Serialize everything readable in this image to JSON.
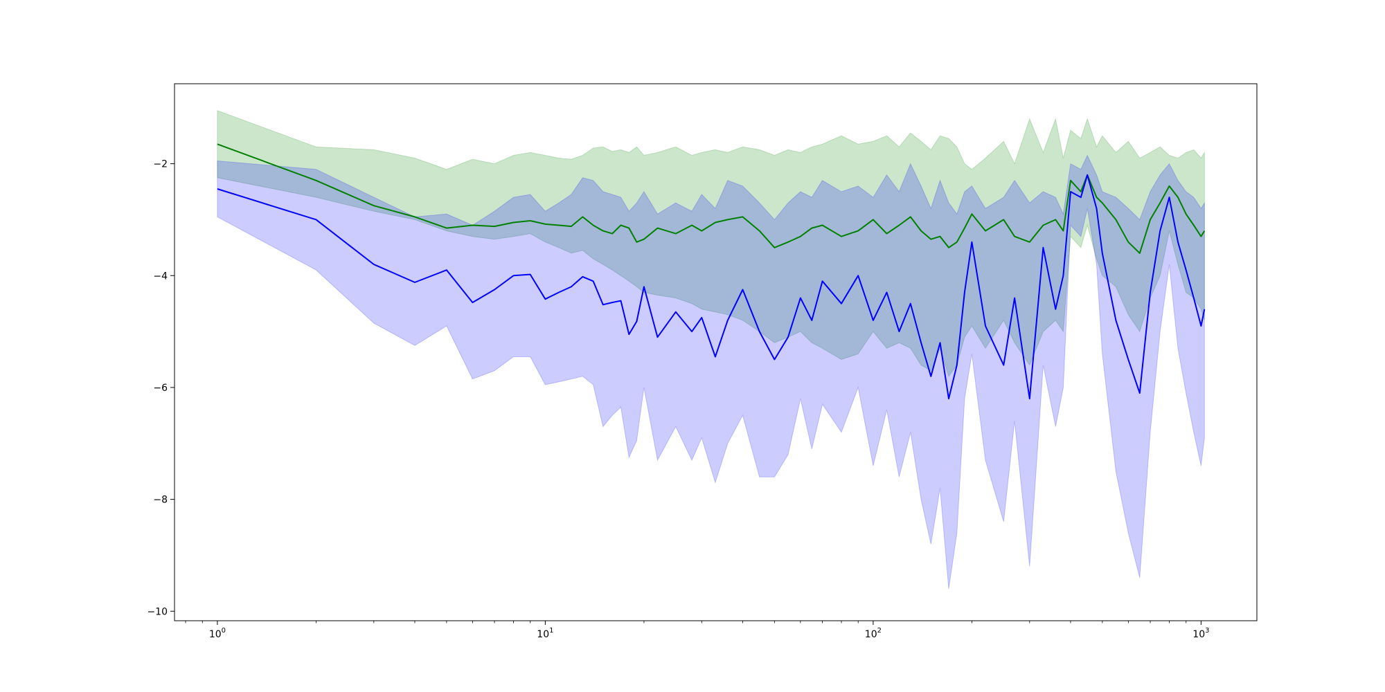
{
  "chart_data": {
    "type": "line",
    "title": "",
    "xlabel": "",
    "ylabel": "",
    "x_scale": "log",
    "xlim": [
      0.74,
      1480
    ],
    "ylim": [
      -10.17,
      -0.57
    ],
    "grid": false,
    "legend": "none",
    "y_ticks": [
      -10,
      -8,
      -6,
      -4,
      -2
    ],
    "y_tick_labels": [
      "−10",
      "−8",
      "−6",
      "−4",
      "−2"
    ],
    "x_ticks": [
      1,
      10,
      100,
      1000
    ],
    "x_tick_labels": [
      {
        "base": "10",
        "exp": "0"
      },
      {
        "base": "10",
        "exp": "1"
      },
      {
        "base": "10",
        "exp": "2"
      },
      {
        "base": "10",
        "exp": "3"
      }
    ],
    "series": [
      {
        "color": "#008000",
        "band_color": "#008000",
        "band_opacity": 0.2,
        "x": [
          1,
          2,
          3,
          4,
          5,
          6,
          7,
          8,
          9,
          10,
          11,
          12,
          13,
          14,
          15,
          16,
          17,
          18,
          19,
          20,
          22,
          25,
          28,
          30,
          33,
          36,
          40,
          45,
          50,
          55,
          60,
          65,
          70,
          80,
          90,
          100,
          110,
          120,
          130,
          140,
          150,
          160,
          170,
          180,
          190,
          200,
          220,
          250,
          270,
          300,
          330,
          360,
          380,
          400,
          430,
          450,
          480,
          500,
          550,
          600,
          650,
          700,
          750,
          800,
          850,
          900,
          950,
          1000,
          1024
        ],
        "y": [
          -1.65,
          -2.3,
          -2.75,
          -2.95,
          -3.15,
          -3.1,
          -3.12,
          -3.05,
          -3.02,
          -3.08,
          -3.1,
          -3.12,
          -2.95,
          -3.1,
          -3.2,
          -3.25,
          -3.1,
          -3.15,
          -3.4,
          -3.35,
          -3.15,
          -3.25,
          -3.1,
          -3.2,
          -3.05,
          -3.0,
          -2.95,
          -3.2,
          -3.5,
          -3.4,
          -3.3,
          -3.15,
          -3.1,
          -3.3,
          -3.2,
          -3.0,
          -3.25,
          -3.1,
          -2.95,
          -3.2,
          -3.35,
          -3.3,
          -3.5,
          -3.4,
          -3.15,
          -2.9,
          -3.2,
          -3.0,
          -3.3,
          -3.4,
          -3.1,
          -3.0,
          -3.2,
          -2.3,
          -2.5,
          -2.2,
          -2.6,
          -2.7,
          -3.0,
          -3.4,
          -3.6,
          -3.0,
          -2.7,
          -2.4,
          -2.6,
          -2.9,
          -3.1,
          -3.3,
          -3.2
        ],
        "band_upper": [
          -1.05,
          -1.7,
          -1.75,
          -1.9,
          -2.1,
          -1.92,
          -2.0,
          -1.85,
          -1.8,
          -1.85,
          -1.9,
          -1.92,
          -1.85,
          -1.72,
          -1.7,
          -1.78,
          -1.75,
          -1.8,
          -1.7,
          -1.85,
          -1.8,
          -1.7,
          -1.85,
          -1.8,
          -1.75,
          -1.8,
          -1.7,
          -1.75,
          -1.85,
          -1.75,
          -1.8,
          -1.7,
          -1.65,
          -1.5,
          -1.65,
          -1.6,
          -1.5,
          -1.7,
          -1.45,
          -1.6,
          -1.75,
          -1.5,
          -1.55,
          -1.7,
          -2.0,
          -2.1,
          -1.9,
          -1.6,
          -2.0,
          -1.2,
          -1.8,
          -1.2,
          -1.9,
          -1.4,
          -1.55,
          -1.2,
          -1.7,
          -1.5,
          -1.8,
          -1.6,
          -1.9,
          -1.8,
          -1.7,
          -1.85,
          -1.9,
          -1.8,
          -1.75,
          -1.9,
          -1.8
        ],
        "band_lower": [
          -2.25,
          -2.6,
          -2.85,
          -3.0,
          -3.2,
          -3.3,
          -3.35,
          -3.3,
          -3.25,
          -3.4,
          -3.5,
          -3.6,
          -3.55,
          -3.7,
          -3.8,
          -3.9,
          -4.0,
          -4.1,
          -4.2,
          -4.3,
          -4.35,
          -4.4,
          -4.5,
          -4.6,
          -4.65,
          -4.7,
          -4.8,
          -5.0,
          -5.2,
          -5.1,
          -5.0,
          -5.2,
          -5.3,
          -5.5,
          -5.4,
          -5.0,
          -5.3,
          -5.2,
          -5.3,
          -5.6,
          -5.7,
          -5.3,
          -5.8,
          -5.6,
          -5.1,
          -4.9,
          -5.3,
          -4.8,
          -5.2,
          -5.6,
          -5.0,
          -4.8,
          -5.0,
          -3.3,
          -3.5,
          -3.1,
          -3.7,
          -4.0,
          -4.2,
          -4.7,
          -5.0,
          -4.4,
          -4.0,
          -3.2,
          -3.8,
          -4.3,
          -4.4,
          -4.6,
          -4.8
        ]
      },
      {
        "color": "#0000ff",
        "band_color": "#0000ff",
        "band_opacity": 0.2,
        "x": [
          1,
          2,
          3,
          4,
          5,
          6,
          7,
          8,
          9,
          10,
          11,
          12,
          13,
          14,
          15,
          16,
          17,
          18,
          19,
          20,
          22,
          25,
          28,
          30,
          33,
          36,
          40,
          45,
          50,
          55,
          60,
          65,
          70,
          80,
          90,
          100,
          110,
          120,
          130,
          140,
          150,
          160,
          170,
          180,
          190,
          200,
          220,
          250,
          270,
          300,
          330,
          360,
          380,
          400,
          430,
          450,
          480,
          500,
          550,
          600,
          650,
          700,
          750,
          800,
          850,
          900,
          950,
          1000,
          1024
        ],
        "y": [
          -2.45,
          -3.0,
          -3.8,
          -4.12,
          -3.9,
          -4.48,
          -4.25,
          -4.0,
          -3.98,
          -4.42,
          -4.3,
          -4.2,
          -4.02,
          -4.1,
          -4.52,
          -4.48,
          -4.45,
          -5.05,
          -4.82,
          -4.2,
          -5.1,
          -4.65,
          -5.0,
          -4.75,
          -5.45,
          -4.8,
          -4.25,
          -5.0,
          -5.5,
          -5.1,
          -4.4,
          -4.8,
          -4.1,
          -4.5,
          -4.0,
          -4.8,
          -4.3,
          -5.0,
          -4.5,
          -5.2,
          -5.8,
          -5.2,
          -6.2,
          -5.6,
          -4.3,
          -3.4,
          -4.9,
          -5.6,
          -4.4,
          -6.2,
          -3.5,
          -4.6,
          -4.0,
          -2.5,
          -2.6,
          -2.2,
          -2.8,
          -3.6,
          -4.8,
          -5.5,
          -6.1,
          -4.3,
          -3.2,
          -2.6,
          -3.4,
          -3.9,
          -4.4,
          -4.9,
          -4.6
        ],
        "band_upper": [
          -1.95,
          -2.1,
          -2.6,
          -2.95,
          -2.9,
          -3.1,
          -2.85,
          -2.6,
          -2.55,
          -2.85,
          -2.7,
          -2.55,
          -2.25,
          -2.3,
          -2.5,
          -2.55,
          -2.6,
          -2.85,
          -2.7,
          -2.5,
          -2.9,
          -2.7,
          -2.85,
          -2.55,
          -2.8,
          -2.3,
          -2.4,
          -2.7,
          -3.0,
          -2.7,
          -2.5,
          -2.6,
          -2.3,
          -2.5,
          -2.4,
          -2.6,
          -2.2,
          -2.5,
          -2.0,
          -2.4,
          -2.8,
          -2.3,
          -2.7,
          -2.9,
          -2.5,
          -2.4,
          -2.8,
          -2.6,
          -2.3,
          -2.7,
          -2.5,
          -2.6,
          -2.9,
          -2.0,
          -2.1,
          -1.85,
          -2.2,
          -2.5,
          -2.6,
          -2.8,
          -3.0,
          -2.5,
          -2.2,
          -2.0,
          -2.3,
          -2.5,
          -2.6,
          -2.8,
          -2.7
        ],
        "band_lower": [
          -2.95,
          -3.9,
          -4.85,
          -5.25,
          -4.9,
          -5.85,
          -5.7,
          -5.45,
          -5.45,
          -5.95,
          -5.9,
          -5.85,
          -5.8,
          -5.95,
          -6.7,
          -6.5,
          -6.35,
          -7.25,
          -6.95,
          -6.0,
          -7.3,
          -6.7,
          -7.3,
          -6.9,
          -7.7,
          -7.0,
          -6.5,
          -7.6,
          -7.6,
          -7.2,
          -6.2,
          -7.1,
          -6.3,
          -6.8,
          -6.0,
          -7.4,
          -6.4,
          -7.6,
          -6.8,
          -8.0,
          -8.8,
          -7.8,
          -9.6,
          -8.6,
          -6.2,
          -5.4,
          -7.3,
          -8.4,
          -6.6,
          -9.2,
          -5.6,
          -6.7,
          -6.0,
          -3.1,
          -3.3,
          -2.8,
          -3.8,
          -5.4,
          -7.5,
          -8.6,
          -9.4,
          -6.8,
          -5.0,
          -3.8,
          -5.3,
          -6.1,
          -6.8,
          -7.4,
          -6.9
        ]
      }
    ]
  }
}
